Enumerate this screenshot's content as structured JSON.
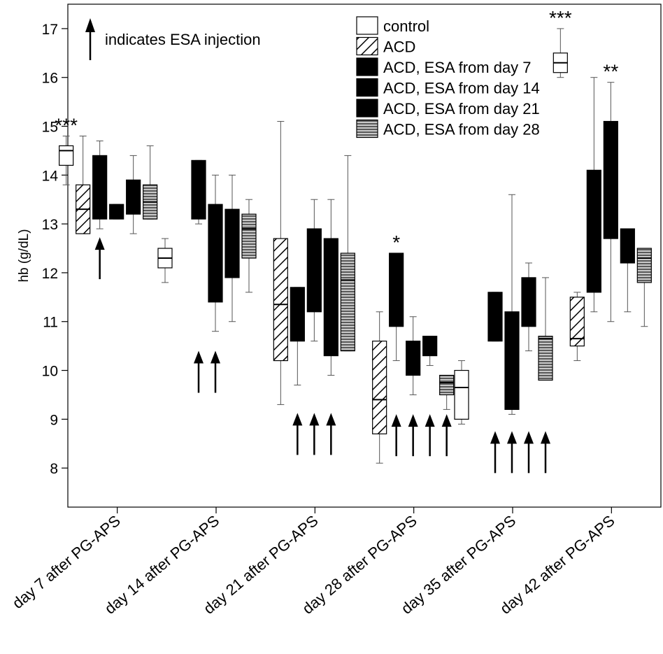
{
  "chart_data": {
    "type": "box",
    "ylabel": "hb (g/dL)",
    "xlabel": "",
    "ylim": [
      7.2,
      17.5
    ],
    "yticks": [
      8,
      9,
      10,
      11,
      12,
      13,
      14,
      15,
      16,
      17
    ],
    "categories": [
      "day 7 after PG-APS",
      "day 14 after PG-APS",
      "day 21 after PG-APS",
      "day 28 after PG-APS",
      "day 35 after PG-APS",
      "day 42 after PG-APS"
    ],
    "series": [
      {
        "name": "control",
        "fill": "open",
        "boxes": [
          {
            "cat": 0,
            "min": 13.8,
            "q1": 14.2,
            "median": 14.5,
            "q3": 14.6,
            "max": 14.8
          },
          {
            "cat": 1,
            "min": 11.8,
            "q1": 12.1,
            "median": 12.3,
            "q3": 12.5,
            "max": 12.7
          },
          null,
          null,
          {
            "cat": 4,
            "min": 8.9,
            "q1": 9.0,
            "median": 9.65,
            "q3": 10.0,
            "max": 10.2
          },
          {
            "cat": 5,
            "min": 16.0,
            "q1": 16.1,
            "median": 16.3,
            "q3": 16.5,
            "max": 17.0
          }
        ]
      },
      {
        "name": "ACD",
        "fill": "hatch",
        "boxes": [
          {
            "cat": 0,
            "min": 12.8,
            "q1": 12.8,
            "median": 13.3,
            "q3": 13.8,
            "max": 14.8
          },
          null,
          {
            "cat": 2,
            "min": 9.3,
            "q1": 10.2,
            "median": 11.35,
            "q3": 12.7,
            "max": 15.1
          },
          {
            "cat": 3,
            "min": 8.1,
            "q1": 8.7,
            "median": 9.4,
            "q3": 10.6,
            "max": 11.2
          },
          null,
          {
            "cat": 5,
            "min": 10.2,
            "q1": 10.5,
            "median": 10.65,
            "q3": 11.5,
            "max": 11.6
          }
        ]
      },
      {
        "name": "ACD, ESA from day 7",
        "fill": "solid",
        "boxes": [
          {
            "cat": 0,
            "min": 12.9,
            "q1": 13.1,
            "median": 13.1,
            "q3": 14.4,
            "max": 14.7
          },
          {
            "cat": 1,
            "min": 13.0,
            "q1": 13.1,
            "median": 13.1,
            "q3": 14.3,
            "max": 14.3
          },
          {
            "cat": 2,
            "min": 9.7,
            "q1": 10.6,
            "median": 10.6,
            "q3": 11.7,
            "max": 11.7
          },
          {
            "cat": 3,
            "min": 10.2,
            "q1": 10.9,
            "median": 10.9,
            "q3": 12.4,
            "max": 12.4
          },
          {
            "cat": 4,
            "min": 10.6,
            "q1": 10.6,
            "median": 10.6,
            "q3": 11.6,
            "max": 11.6
          },
          {
            "cat": 5,
            "min": 11.2,
            "q1": 11.6,
            "median": 11.6,
            "q3": 14.1,
            "max": 16.0
          }
        ]
      },
      {
        "name": "ACD, ESA from day 14",
        "fill": "solid",
        "boxes": [
          {
            "cat": 0,
            "min": 13.1,
            "q1": 13.1,
            "median": 13.1,
            "q3": 13.4,
            "max": 13.4
          },
          {
            "cat": 1,
            "min": 10.8,
            "q1": 11.4,
            "median": 11.4,
            "q3": 13.4,
            "max": 14.0
          },
          {
            "cat": 2,
            "min": 10.6,
            "q1": 11.2,
            "median": 11.2,
            "q3": 12.9,
            "max": 13.5
          },
          {
            "cat": 3,
            "min": 9.5,
            "q1": 9.9,
            "median": 9.9,
            "q3": 10.6,
            "max": 11.1
          },
          {
            "cat": 4,
            "min": 9.1,
            "q1": 9.2,
            "median": 9.2,
            "q3": 11.2,
            "max": 13.6
          },
          {
            "cat": 5,
            "min": 11.0,
            "q1": 12.7,
            "median": 12.7,
            "q3": 15.1,
            "max": 15.9
          }
        ]
      },
      {
        "name": "ACD, ESA from day 21",
        "fill": "solid",
        "boxes": [
          {
            "cat": 0,
            "min": 12.8,
            "q1": 13.2,
            "median": 13.2,
            "q3": 13.9,
            "max": 14.4
          },
          {
            "cat": 1,
            "min": 11.0,
            "q1": 11.9,
            "median": 11.9,
            "q3": 13.3,
            "max": 14.0
          },
          {
            "cat": 2,
            "min": 9.9,
            "q1": 10.3,
            "median": 10.3,
            "q3": 12.7,
            "max": 13.5
          },
          {
            "cat": 3,
            "min": 10.1,
            "q1": 10.3,
            "median": 10.3,
            "q3": 10.7,
            "max": 10.7
          },
          {
            "cat": 4,
            "min": 10.4,
            "q1": 10.9,
            "median": 10.9,
            "q3": 11.9,
            "max": 12.2
          },
          {
            "cat": 5,
            "min": 11.2,
            "q1": 12.2,
            "median": 12.2,
            "q3": 12.9,
            "max": 12.9
          }
        ]
      },
      {
        "name": "ACD, ESA from day 28",
        "fill": "stripes",
        "boxes": [
          {
            "cat": 0,
            "min": 13.1,
            "q1": 13.1,
            "median": 13.45,
            "q3": 13.8,
            "max": 14.6
          },
          {
            "cat": 1,
            "min": 11.6,
            "q1": 12.3,
            "median": 12.9,
            "q3": 13.2,
            "max": 13.5
          },
          {
            "cat": 2,
            "min": 10.4,
            "q1": 10.4,
            "median": 11.85,
            "q3": 12.4,
            "max": 14.4
          },
          {
            "cat": 3,
            "min": 9.2,
            "q1": 9.5,
            "median": 9.75,
            "q3": 9.9,
            "max": 9.9
          },
          {
            "cat": 4,
            "min": 9.8,
            "q1": 9.8,
            "median": 10.65,
            "q3": 10.7,
            "max": 11.9
          },
          {
            "cat": 5,
            "min": 10.9,
            "q1": 11.8,
            "median": 12.3,
            "q3": 12.5,
            "max": 12.5
          }
        ]
      }
    ],
    "legend": {
      "placement": "top-right"
    },
    "annotations": {
      "arrow_legend_text": "indicates ESA injection",
      "arrows": [
        {
          "cat": 0,
          "series": 2
        },
        {
          "cat": 1,
          "series": 2
        },
        {
          "cat": 1,
          "series": 3
        },
        {
          "cat": 2,
          "series": 2
        },
        {
          "cat": 2,
          "series": 3
        },
        {
          "cat": 2,
          "series": 4
        },
        {
          "cat": 3,
          "series": 2
        },
        {
          "cat": 3,
          "series": 3
        },
        {
          "cat": 3,
          "series": 4
        },
        {
          "cat": 3,
          "series": 5
        },
        {
          "cat": 4,
          "series": 2
        },
        {
          "cat": 4,
          "series": 3
        },
        {
          "cat": 4,
          "series": 4
        },
        {
          "cat": 4,
          "series": 5
        }
      ],
      "significance": [
        {
          "cat": 0,
          "series": 0,
          "text": "***"
        },
        {
          "cat": 3,
          "series": 2,
          "text": "*"
        },
        {
          "cat": 5,
          "series": 0,
          "text": "***"
        },
        {
          "cat": 5,
          "series": 3,
          "text": "**"
        }
      ]
    }
  }
}
